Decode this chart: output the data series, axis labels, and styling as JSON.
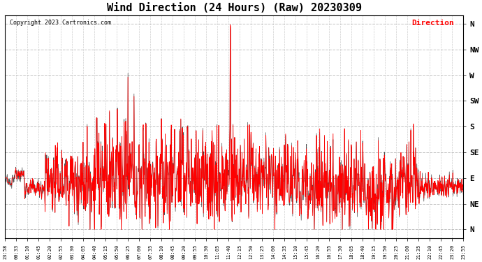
{
  "title": "Wind Direction (24 Hours) (Raw) 20230309",
  "copyright": "Copyright 2023 Cartronics.com",
  "legend_label": "Direction",
  "background_color": "#ffffff",
  "plot_bg_color": "#ffffff",
  "grid_color": "#bbbbbb",
  "line_color": "#ff0000",
  "title_fontsize": 11,
  "ytick_labels": [
    "N",
    "NE",
    "E",
    "SE",
    "S",
    "SW",
    "W",
    "NW",
    "N"
  ],
  "ytick_values": [
    0,
    45,
    90,
    135,
    180,
    225,
    270,
    315,
    360
  ],
  "ylim": [
    -15,
    375
  ],
  "xtick_labels": [
    "23:58",
    "00:33",
    "01:10",
    "01:45",
    "02:20",
    "02:55",
    "03:30",
    "04:05",
    "04:40",
    "05:15",
    "05:50",
    "06:25",
    "07:00",
    "07:35",
    "08:10",
    "08:45",
    "09:20",
    "09:55",
    "10:30",
    "11:05",
    "11:40",
    "12:15",
    "12:50",
    "13:25",
    "14:00",
    "14:35",
    "15:10",
    "15:45",
    "16:20",
    "16:55",
    "17:30",
    "18:05",
    "18:40",
    "19:15",
    "19:50",
    "20:25",
    "21:00",
    "21:35",
    "22:10",
    "22:45",
    "23:20",
    "23:55"
  ]
}
